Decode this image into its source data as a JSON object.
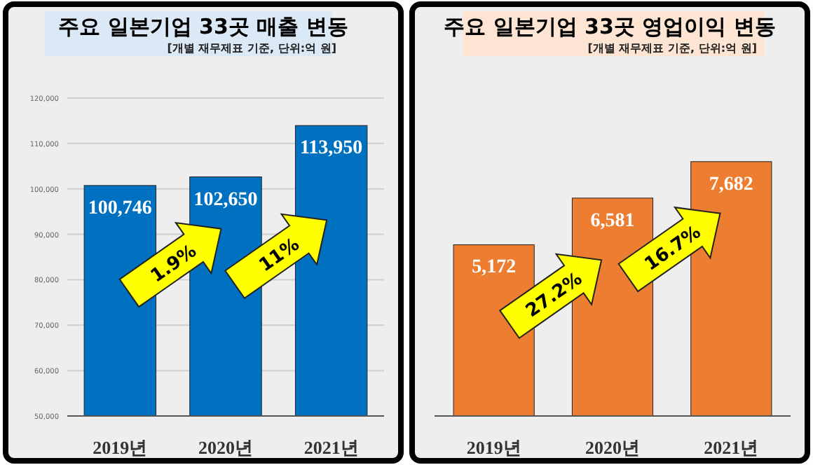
{
  "chart_data": [
    {
      "type": "bar",
      "title": "주요 일본기업 33곳 매출 변동",
      "subtitle": "[개별 재무제표 기준, 단위:억 원]",
      "categories": [
        "2019년",
        "2020년",
        "2021년"
      ],
      "values": [
        100746,
        102650,
        113950
      ],
      "color": "#0070c0",
      "ylim": [
        50000,
        120000
      ],
      "yticks": [
        {
          "value": 50000,
          "label": "50,000"
        },
        {
          "value": 60000,
          "label": "60,000"
        },
        {
          "value": 70000,
          "label": "70,000"
        },
        {
          "value": 80000,
          "label": "80,000"
        },
        {
          "value": 90000,
          "label": "90,000"
        },
        {
          "value": 100000,
          "label": "100,000"
        },
        {
          "value": 110000,
          "label": "110,000"
        },
        {
          "value": 120000,
          "label": "120,000"
        }
      ],
      "grid": "y",
      "value_labels": [
        "100,746",
        "102,650",
        "113,950"
      ],
      "annotations": [
        "1.9%",
        "11%"
      ]
    },
    {
      "type": "bar",
      "title": "주요 일본기업 33곳 영업이익 변동",
      "subtitle": "[개별 재무제표 기준, 단위:억 원]",
      "categories": [
        "2019년",
        "2020년",
        "2021년"
      ],
      "values": [
        5172,
        6581,
        7682
      ],
      "color": "#ed7d31",
      "tick_labels": "x",
      "value_labels": [
        "5,172",
        "6,581",
        "7,682"
      ],
      "annotations": [
        "27.2%",
        "16.7%"
      ]
    }
  ]
}
